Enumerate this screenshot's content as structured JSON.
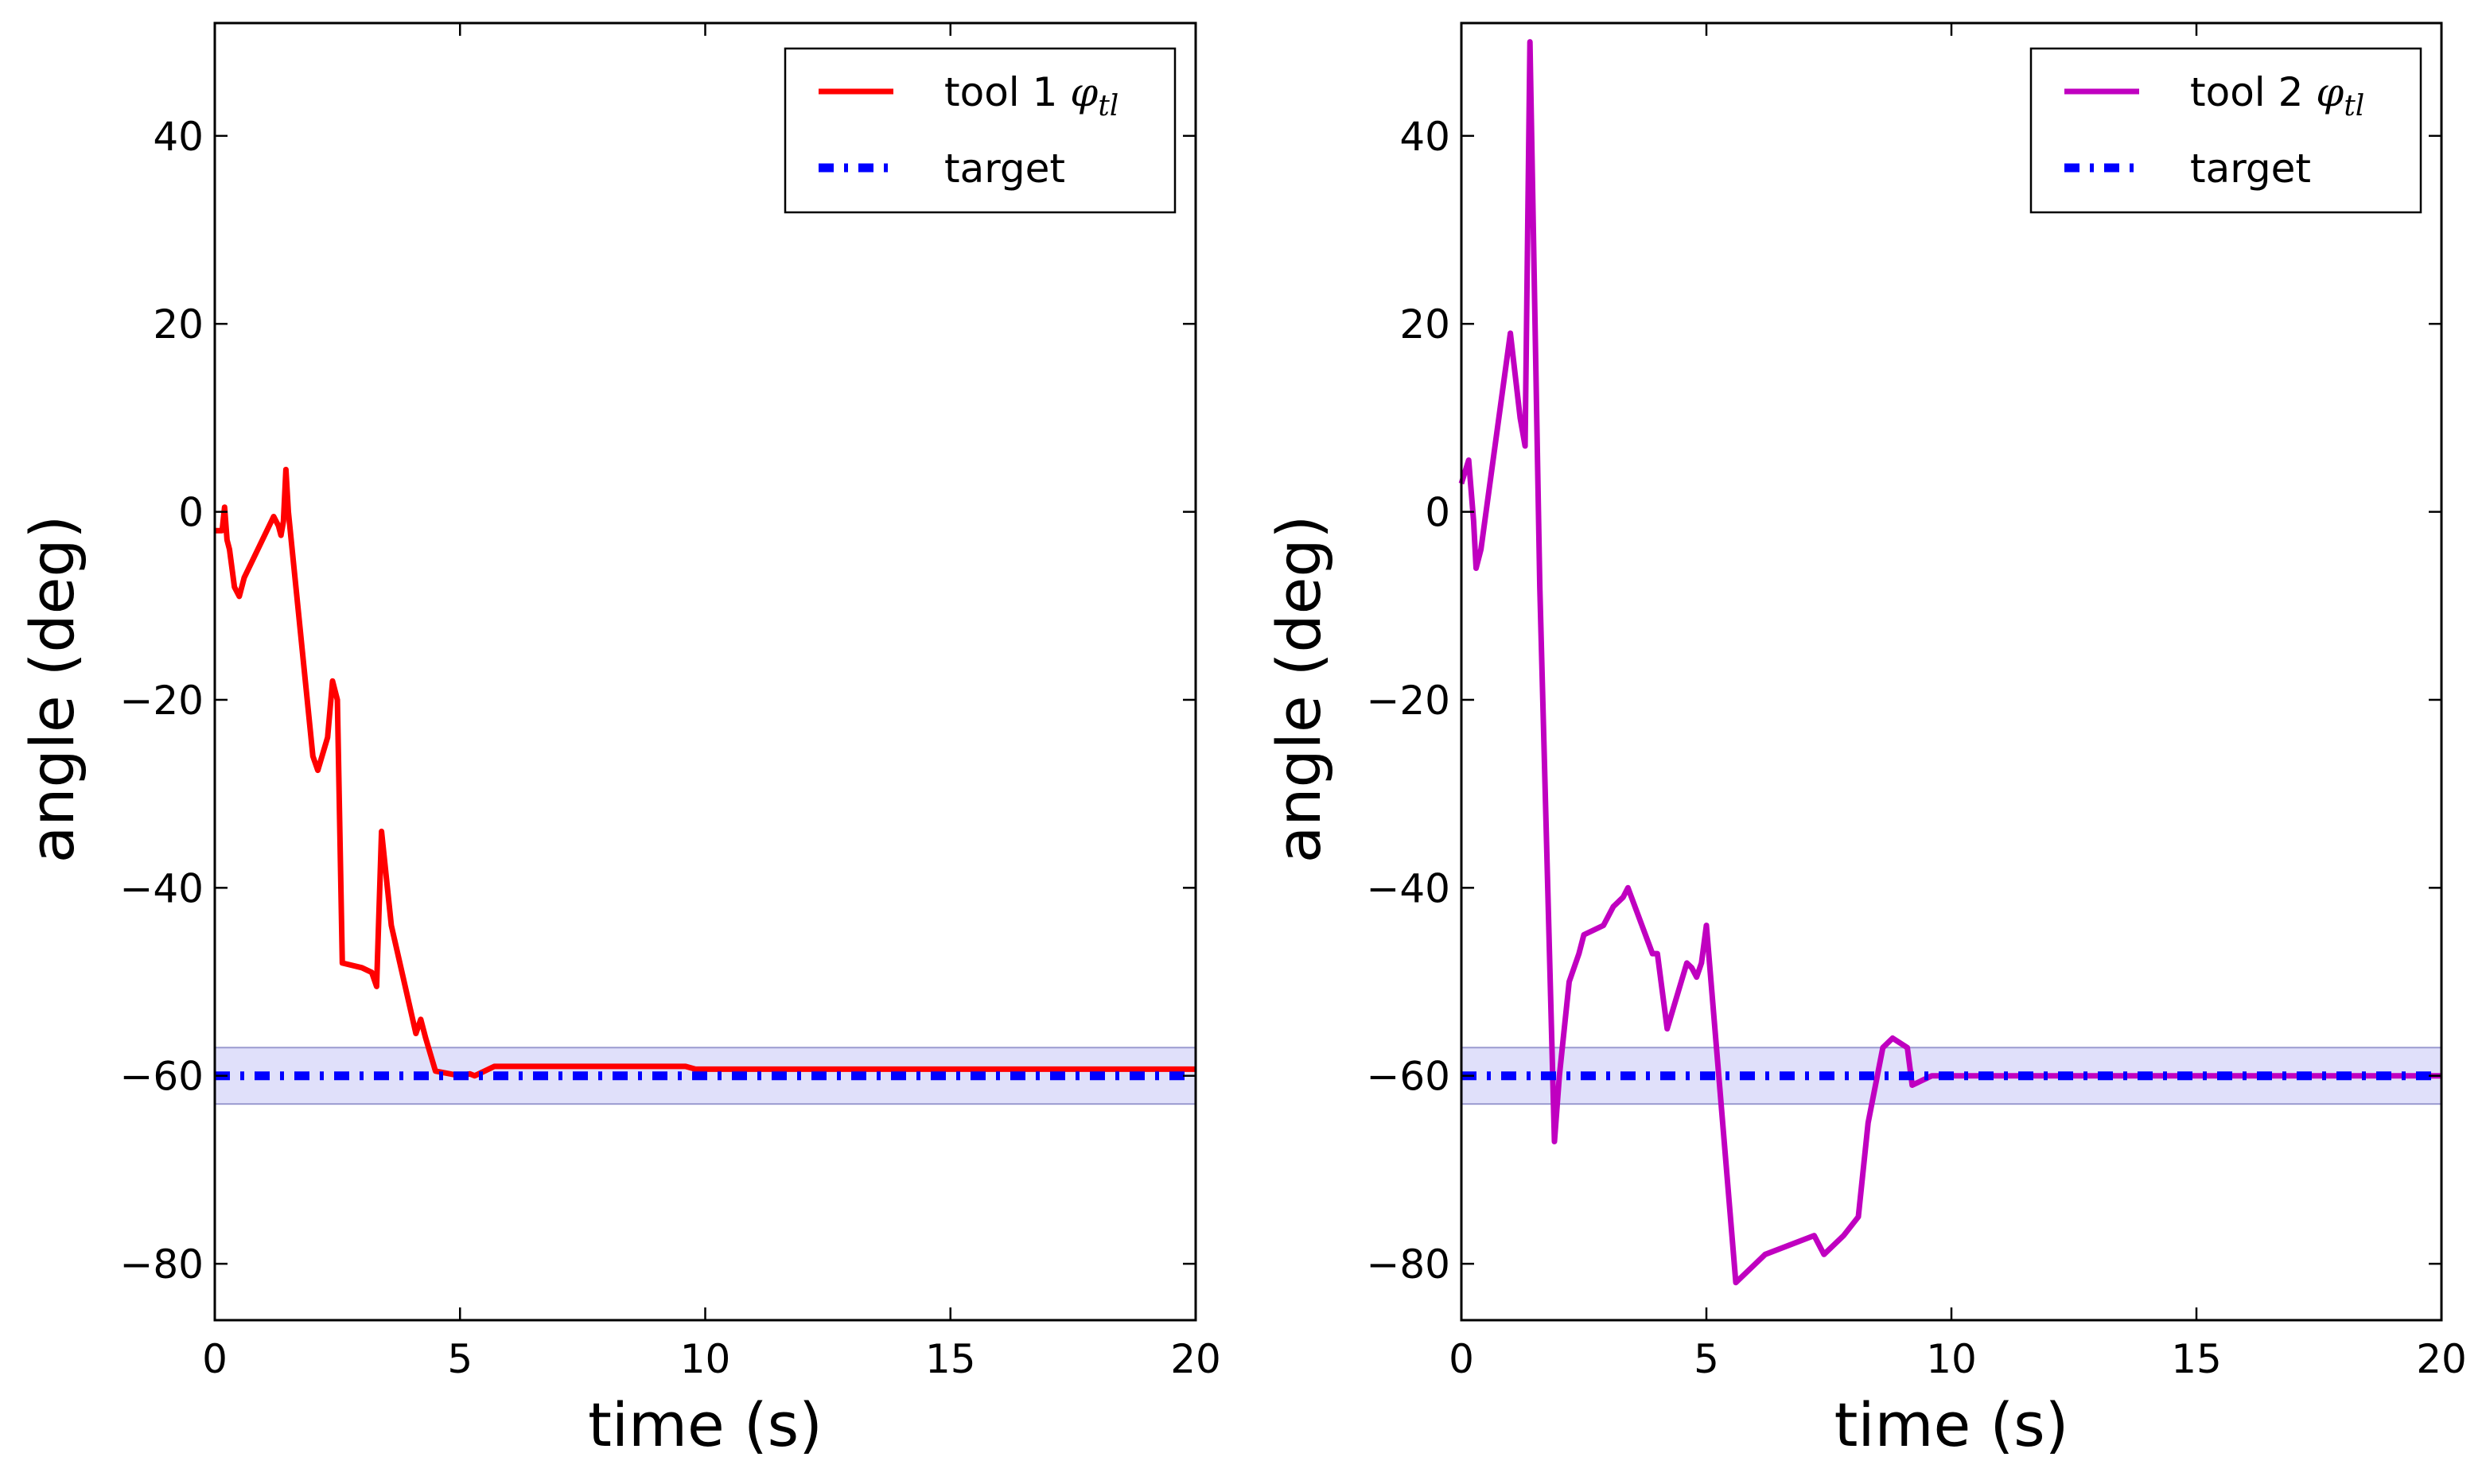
{
  "chart_data": [
    {
      "type": "line",
      "xlabel": "time (s)",
      "ylabel": "angle (deg)",
      "xlim": [
        0,
        20
      ],
      "ylim": [
        -86,
        52
      ],
      "xticks": [
        0,
        5,
        10,
        15,
        20
      ],
      "yticks": [
        40,
        20,
        0,
        -20,
        -40,
        -60,
        -80
      ],
      "target_value": -60,
      "tolerance_band": [
        -63,
        -57
      ],
      "legend_position": "top-right",
      "series": [
        {
          "name": "tool 1",
          "label": "tool 1",
          "symbol": "φ",
          "subscript": "tl",
          "color": "#ff0000",
          "style": "solid",
          "x": [
            0,
            0.15,
            0.2,
            0.25,
            0.3,
            0.4,
            0.5,
            0.6,
            1.2,
            1.3,
            1.35,
            1.4,
            1.45,
            1.5,
            2.0,
            2.1,
            2.3,
            2.4,
            2.5,
            2.6,
            3.0,
            3.2,
            3.3,
            3.4,
            3.6,
            4.1,
            4.2,
            4.3,
            4.5,
            5.0,
            5.2,
            5.3,
            5.5,
            5.7,
            9.6,
            9.8,
            20
          ],
          "y": [
            -2,
            -2,
            0.5,
            -3,
            -4,
            -8,
            -9,
            -7,
            -0.5,
            -1.5,
            -2.5,
            -1,
            4.5,
            0,
            -26,
            -27.5,
            -24,
            -18,
            -20,
            -48,
            -48.5,
            -49,
            -50.5,
            -34,
            -44,
            -55.5,
            -54,
            -56,
            -59.5,
            -60,
            -59.8,
            -60,
            -59.5,
            -59,
            -59,
            -59.3,
            -59.3
          ]
        },
        {
          "name": "target",
          "label": "target",
          "color": "#0000ff",
          "style": "dashdot",
          "x": [
            0,
            20
          ],
          "y": [
            -60,
            -60
          ]
        }
      ]
    },
    {
      "type": "line",
      "xlabel": "time (s)",
      "ylabel": "angle (deg)",
      "xlim": [
        0,
        20
      ],
      "ylim": [
        -86,
        52
      ],
      "xticks": [
        0,
        5,
        10,
        15,
        20
      ],
      "yticks": [
        40,
        20,
        0,
        -20,
        -40,
        -60,
        -80
      ],
      "target_value": -60,
      "tolerance_band": [
        -63,
        -57
      ],
      "legend_position": "top-right",
      "series": [
        {
          "name": "tool 2",
          "label": "tool 2",
          "symbol": "φ",
          "subscript": "tl",
          "color": "#c000c0",
          "style": "solid",
          "x": [
            0,
            0.15,
            0.25,
            0.3,
            0.4,
            1.0,
            1.2,
            1.3,
            1.4,
            1.6,
            1.9,
            2.0,
            2.2,
            2.4,
            2.5,
            2.9,
            3.1,
            3.3,
            3.4,
            3.9,
            4.0,
            4.2,
            4.6,
            4.7,
            4.8,
            4.9,
            5.0,
            5.6,
            6.0,
            6.2,
            7.2,
            7.4,
            7.8,
            8.1,
            8.3,
            8.6,
            8.8,
            9.1,
            9.2,
            9.6,
            10,
            20
          ],
          "y": [
            3,
            5.5,
            -1,
            -6,
            -4,
            19,
            10,
            7,
            50,
            -8,
            -67,
            -60,
            -50,
            -47,
            -45,
            -44,
            -42,
            -41,
            -40,
            -47,
            -47,
            -55,
            -48,
            -48.5,
            -49.5,
            -48,
            -44,
            -82,
            -80,
            -79,
            -77,
            -79,
            -77,
            -75,
            -65,
            -57,
            -56,
            -57,
            -61,
            -60,
            -60,
            -60
          ]
        },
        {
          "name": "target",
          "label": "target",
          "color": "#0000ff",
          "style": "dashdot",
          "x": [
            0,
            20
          ],
          "y": [
            -60,
            -60
          ]
        }
      ]
    }
  ]
}
